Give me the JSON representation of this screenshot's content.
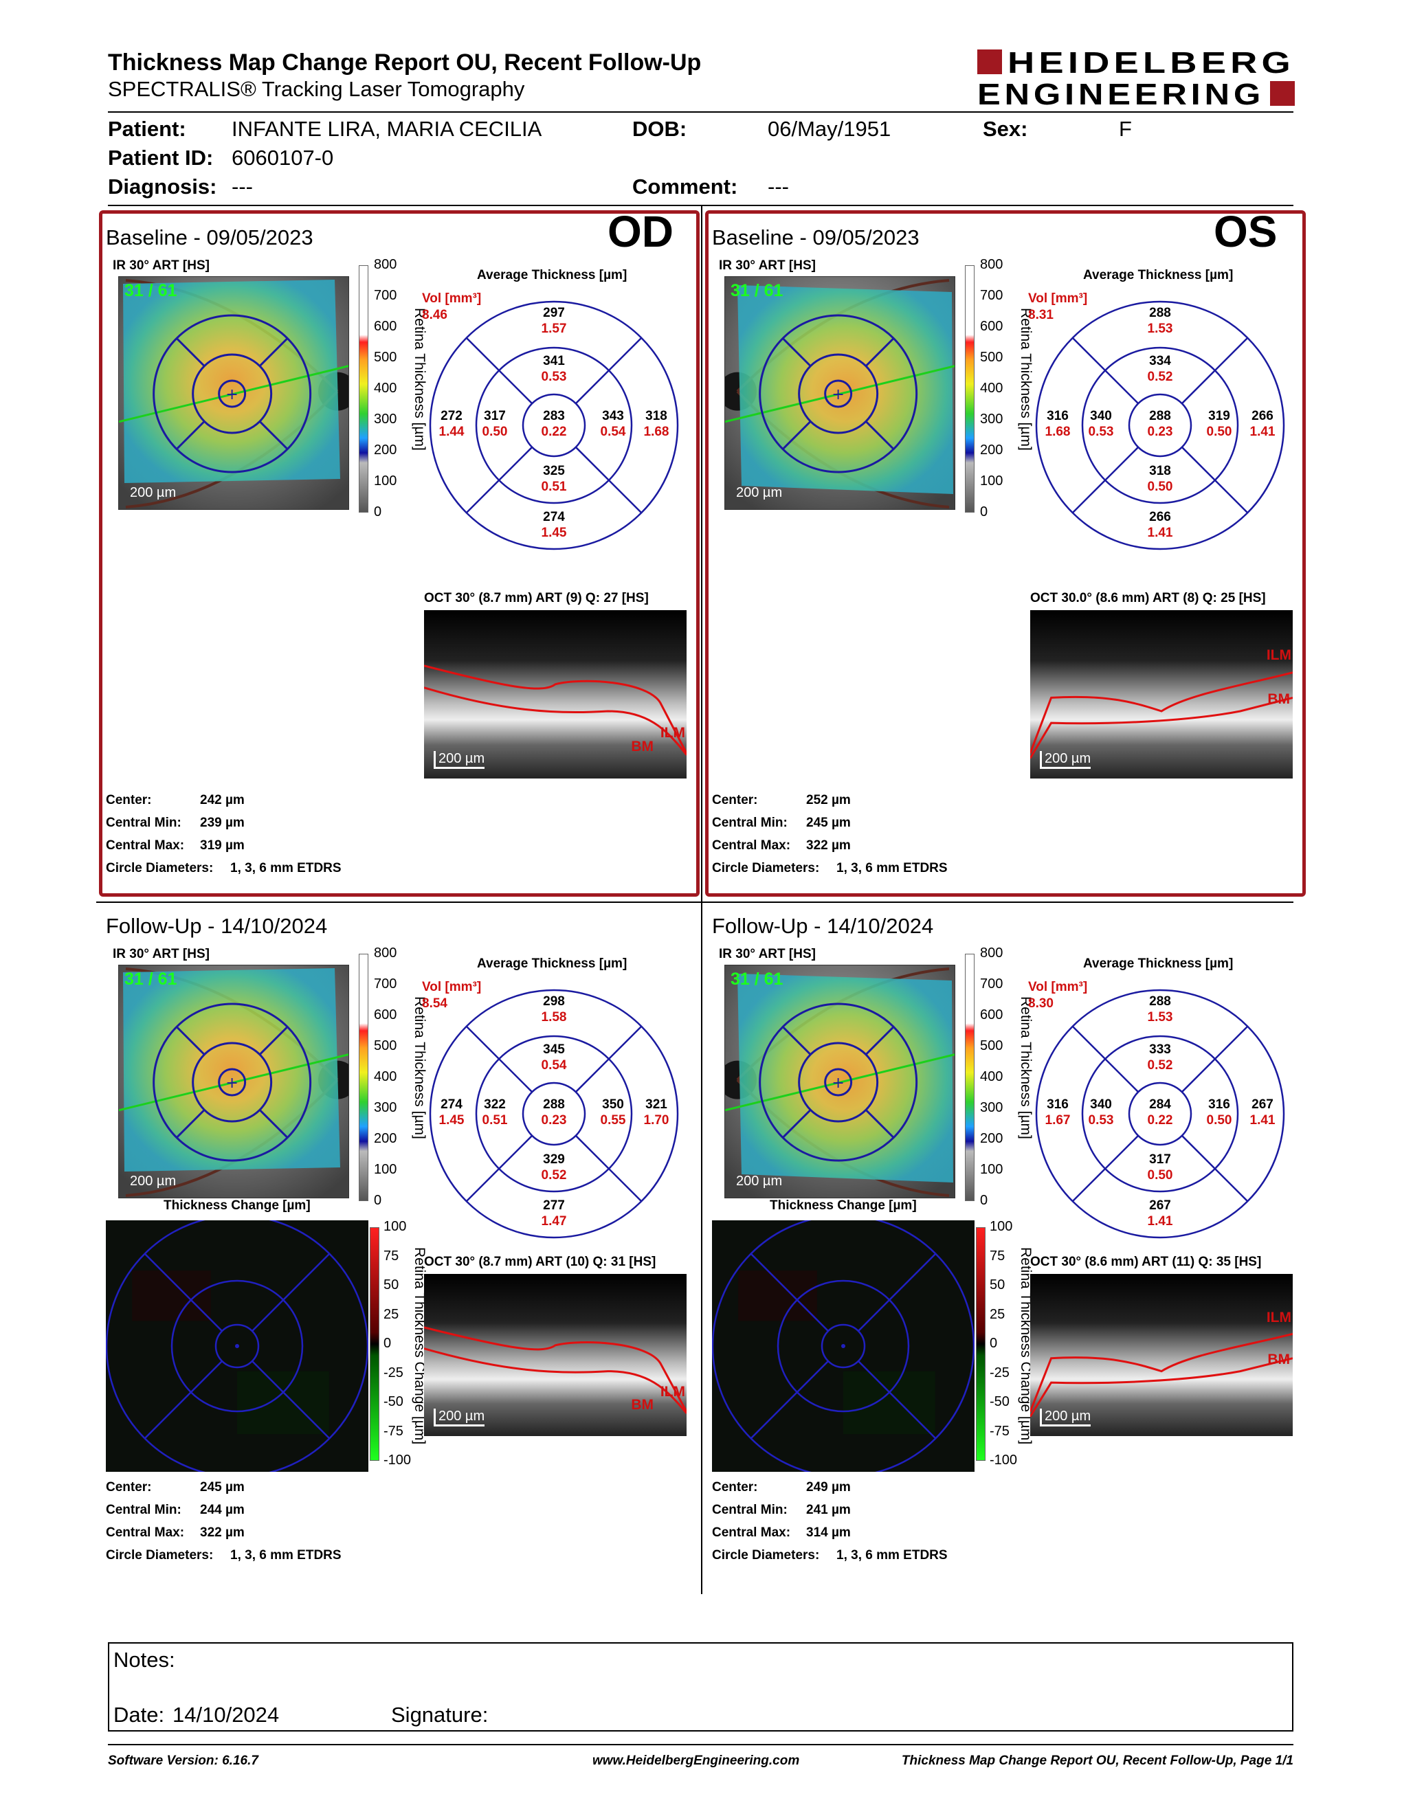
{
  "header": {
    "title": "Thickness Map Change Report OU, Recent Follow-Up",
    "subtitle": "SPECTRALIS® Tracking Laser Tomography",
    "logo_line1": "HEIDELBERG",
    "logo_line2": "ENGINEERING"
  },
  "patient": {
    "patient_label": "Patient:",
    "name": "INFANTE LIRA, MARIA CECILIA",
    "dob_label": "DOB:",
    "dob": "06/May/1951",
    "sex_label": "Sex:",
    "sex": "F",
    "id_label": "Patient ID:",
    "id": "6060107-0",
    "diagnosis_label": "Diagnosis:",
    "diagnosis": "---",
    "comment_label": "Comment:",
    "comment": "---"
  },
  "common": {
    "ir_label": "IR 30° ART [HS]",
    "avg_label": "Average Thickness [µm]",
    "vol_label": "Vol [mm³]",
    "scale": "200 µm",
    "cbar_title": "Retina Thickness [µm]",
    "cbar_ticks": [
      "800",
      "700",
      "600",
      "500",
      "400",
      "300",
      "200",
      "100",
      "0"
    ],
    "change_title": "Thickness Change [µm]",
    "change_cbar_title": "Retina Thickness Change [µm]",
    "change_ticks": [
      "100",
      "75",
      "50",
      "25",
      "0",
      "-25",
      "-50",
      "-75",
      "-100"
    ],
    "ilm": "ILM",
    "bm": "BM",
    "k_center": "Center:",
    "k_min": "Central Min:",
    "k_max": "Central Max:",
    "k_circ": "Circle Diameters:",
    "circ": "1, 3, 6 mm ETDRS"
  },
  "panels": {
    "od_base": {
      "title": "Baseline - 09/05/2023",
      "eye": "OD",
      "frames": "31 / 61",
      "vol": "8.46",
      "oct_label": "OCT 30° (8.7 mm) ART (9) Q: 27 [HS]",
      "center": "242 µm",
      "min": "239 µm",
      "max": "319 µm",
      "etdrs": {
        "c": [
          "283",
          "0.22"
        ],
        "is": [
          "341",
          "0.53"
        ],
        "os": [
          "297",
          "1.57"
        ],
        "ii": [
          "325",
          "0.51"
        ],
        "oi": [
          "274",
          "1.45"
        ],
        "li": [
          "317",
          "0.50"
        ],
        "lo": [
          "272",
          "1.44"
        ],
        "ri": [
          "343",
          "0.54"
        ],
        "ro": [
          "318",
          "1.68"
        ]
      }
    },
    "os_base": {
      "title": "Baseline - 09/05/2023",
      "eye": "OS",
      "frames": "31 / 61",
      "vol": "8.31",
      "oct_label": "OCT 30.0° (8.6 mm) ART (8) Q: 25 [HS]",
      "center": "252 µm",
      "min": "245 µm",
      "max": "322 µm",
      "etdrs": {
        "c": [
          "288",
          "0.23"
        ],
        "is": [
          "334",
          "0.52"
        ],
        "os": [
          "288",
          "1.53"
        ],
        "ii": [
          "318",
          "0.50"
        ],
        "oi": [
          "266",
          "1.41"
        ],
        "li": [
          "340",
          "0.53"
        ],
        "lo": [
          "316",
          "1.68"
        ],
        "ri": [
          "319",
          "0.50"
        ],
        "ro": [
          "266",
          "1.41"
        ]
      }
    },
    "od_fu": {
      "title": "Follow-Up - 14/10/2024",
      "frames": "31 / 61",
      "vol": "8.54",
      "oct_label": "OCT 30° (8.7 mm) ART (10) Q: 31 [HS]",
      "center": "245 µm",
      "min": "244 µm",
      "max": "322 µm",
      "etdrs": {
        "c": [
          "288",
          "0.23"
        ],
        "is": [
          "345",
          "0.54"
        ],
        "os": [
          "298",
          "1.58"
        ],
        "ii": [
          "329",
          "0.52"
        ],
        "oi": [
          "277",
          "1.47"
        ],
        "li": [
          "322",
          "0.51"
        ],
        "lo": [
          "274",
          "1.45"
        ],
        "ri": [
          "350",
          "0.55"
        ],
        "ro": [
          "321",
          "1.70"
        ]
      }
    },
    "os_fu": {
      "title": "Follow-Up - 14/10/2024",
      "frames": "31 / 61",
      "vol": "8.30",
      "oct_label": "OCT 30° (8.6 mm) ART (11) Q: 35 [HS]",
      "center": "249 µm",
      "min": "241 µm",
      "max": "314 µm",
      "etdrs": {
        "c": [
          "284",
          "0.22"
        ],
        "is": [
          "333",
          "0.52"
        ],
        "os": [
          "288",
          "1.53"
        ],
        "ii": [
          "317",
          "0.50"
        ],
        "oi": [
          "267",
          "1.41"
        ],
        "li": [
          "340",
          "0.53"
        ],
        "lo": [
          "316",
          "1.67"
        ],
        "ri": [
          "316",
          "0.50"
        ],
        "ro": [
          "267",
          "1.41"
        ]
      }
    }
  },
  "notes": {
    "notes_label": "Notes:",
    "date_label": "Date:",
    "date": "14/10/2024",
    "signature_label": "Signature:"
  },
  "footer": {
    "software": "Software Version: 6.16.7",
    "url": "www.HeidelbergEngineering.com",
    "page": "Thickness Map Change Report OU, Recent Follow-Up, Page 1/1"
  },
  "colors": {
    "frame_red": "#a01820",
    "etdrs_blue": "#1a1aa0",
    "vol_red": "#d01010",
    "frames_green": "#1cff1c"
  }
}
